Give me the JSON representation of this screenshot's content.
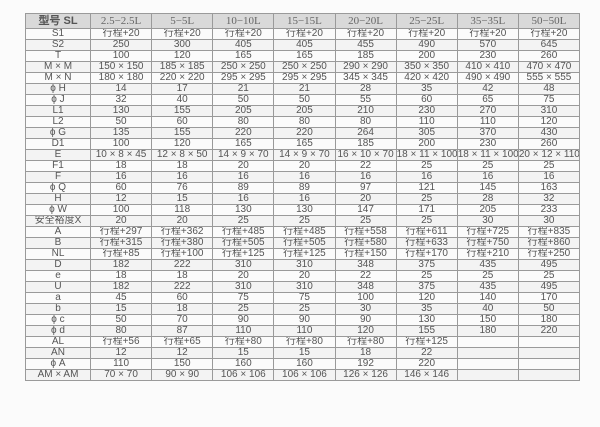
{
  "table": {
    "headers": [
      "型号 SL",
      "2.5−2.5L",
      "5−5L",
      "10−10L",
      "15−15L",
      "20−20L",
      "25−25L",
      "35−35L",
      "50−50L"
    ],
    "rows": [
      [
        "S1",
        "行程+20",
        "行程+20",
        "行程+20",
        "行程+20",
        "行程+20",
        "行程+20",
        "行程+20",
        "行程+20"
      ],
      [
        "S2",
        "250",
        "300",
        "405",
        "405",
        "455",
        "490",
        "570",
        "645"
      ],
      [
        "T",
        "100",
        "120",
        "165",
        "165",
        "185",
        "200",
        "230",
        "260"
      ],
      [
        "M × M",
        "150 × 150",
        "185 × 185",
        "250 × 250",
        "250 × 250",
        "290 × 290",
        "350 × 350",
        "410 × 410",
        "470 × 470"
      ],
      [
        "M × N",
        "180 × 180",
        "220 × 220",
        "295 × 295",
        "295 × 295",
        "345 × 345",
        "420 × 420",
        "490 × 490",
        "555 × 555"
      ],
      [
        "ϕ H",
        "14",
        "17",
        "21",
        "21",
        "28",
        "35",
        "42",
        "48"
      ],
      [
        "ϕ J",
        "32",
        "40",
        "50",
        "50",
        "55",
        "60",
        "65",
        "75"
      ],
      [
        "L1",
        "130",
        "155",
        "205",
        "205",
        "210",
        "230",
        "270",
        "310"
      ],
      [
        "L2",
        "50",
        "60",
        "80",
        "80",
        "80",
        "110",
        "110",
        "120"
      ],
      [
        "ϕ G",
        "135",
        "155",
        "220",
        "220",
        "264",
        "305",
        "370",
        "430"
      ],
      [
        "D1",
        "100",
        "120",
        "165",
        "165",
        "185",
        "200",
        "230",
        "260"
      ],
      [
        "E",
        "10 × 8 × 45",
        "12 × 8 × 50",
        "14 × 9 × 70",
        "14 × 9 × 70",
        "16 × 10 × 70",
        "18 × 11 × 100",
        "18 × 11 × 100",
        "20 × 12 × 110"
      ],
      [
        "F1",
        "18",
        "18",
        "20",
        "20",
        "22",
        "25",
        "25",
        "25"
      ],
      [
        "F",
        "16",
        "16",
        "16",
        "16",
        "16",
        "16",
        "16",
        "16"
      ],
      [
        "ϕ Q",
        "60",
        "76",
        "89",
        "89",
        "97",
        "121",
        "145",
        "163"
      ],
      [
        "H",
        "12",
        "15",
        "16",
        "16",
        "20",
        "25",
        "28",
        "32"
      ],
      [
        "ϕ W",
        "100",
        "118",
        "130",
        "130",
        "147",
        "171",
        "205",
        "233"
      ],
      [
        "安全裕度X",
        "20",
        "20",
        "25",
        "25",
        "25",
        "25",
        "30",
        "30"
      ],
      [
        "A",
        "行程+297",
        "行程+362",
        "行程+485",
        "行程+485",
        "行程+558",
        "行程+611",
        "行程+725",
        "行程+835"
      ],
      [
        "B",
        "行程+315",
        "行程+380",
        "行程+505",
        "行程+505",
        "行程+580",
        "行程+633",
        "行程+750",
        "行程+860"
      ],
      [
        "NL",
        "行程+85",
        "行程+100",
        "行程+125",
        "行程+125",
        "行程+150",
        "行程+170",
        "行程+210",
        "行程+250"
      ],
      [
        "D",
        "182",
        "222",
        "310",
        "310",
        "348",
        "375",
        "435",
        "495"
      ],
      [
        "e",
        "18",
        "18",
        "20",
        "20",
        "22",
        "25",
        "25",
        "25"
      ],
      [
        "U",
        "182",
        "222",
        "310",
        "310",
        "348",
        "375",
        "435",
        "495"
      ],
      [
        "a",
        "45",
        "60",
        "75",
        "75",
        "100",
        "120",
        "140",
        "170"
      ],
      [
        "b",
        "15",
        "18",
        "25",
        "25",
        "30",
        "35",
        "40",
        "50"
      ],
      [
        "ϕ c",
        "50",
        "70",
        "90",
        "90",
        "90",
        "130",
        "150",
        "180"
      ],
      [
        "ϕ d",
        "80",
        "87",
        "110",
        "110",
        "120",
        "155",
        "180",
        "220"
      ],
      [
        "AL",
        "行程+56",
        "行程+65",
        "行程+80",
        "行程+80",
        "行程+80",
        "行程+125",
        "",
        ""
      ],
      [
        "AN",
        "12",
        "12",
        "15",
        "15",
        "18",
        "22",
        "",
        ""
      ],
      [
        "ϕ A",
        "110",
        "150",
        "160",
        "160",
        "192",
        "220",
        "",
        ""
      ],
      [
        "AM × AM",
        "70 × 70",
        "90 × 90",
        "106 × 106",
        "106 × 106",
        "126 × 126",
        "146 × 146",
        "",
        ""
      ]
    ]
  }
}
